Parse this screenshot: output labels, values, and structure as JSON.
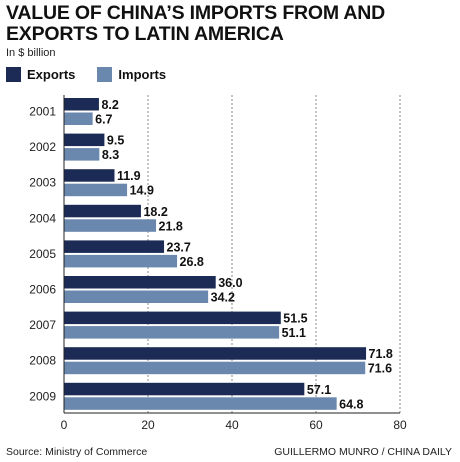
{
  "title": "VALUE OF CHINA’S IMPORTS FROM AND EXPORTS TO LATIN AMERICA",
  "unit": "In $ billion",
  "source": "Source: Ministry of Commerce",
  "credit": "GUILLERMO MUNRO / CHINA DAILY",
  "colors": {
    "exports": "#1b2b55",
    "imports": "#6a87ad",
    "grid": "#888888"
  },
  "chart_data": {
    "type": "bar",
    "orientation": "horizontal",
    "categories": [
      "2001",
      "2002",
      "2003",
      "2004",
      "2005",
      "2006",
      "2007",
      "2008",
      "2009"
    ],
    "series": [
      {
        "name": "Exports",
        "values": [
          8.2,
          9.5,
          11.9,
          18.2,
          23.7,
          36.0,
          51.5,
          71.8,
          57.1
        ],
        "labels": [
          "8.2",
          "9.5",
          "11.9",
          "18.2",
          "23.7",
          "36.0",
          "51.5",
          "71.8",
          "57.1"
        ]
      },
      {
        "name": "Imports",
        "values": [
          6.7,
          8.3,
          14.9,
          21.8,
          26.8,
          34.2,
          51.1,
          71.6,
          64.8
        ],
        "labels": [
          "6.7",
          "8.3",
          "14.9",
          "21.8",
          "26.8",
          "34.2",
          "51.1",
          "71.6",
          "64.8"
        ]
      }
    ],
    "xlim": [
      0,
      80
    ],
    "xticks": [
      "0",
      "20",
      "40",
      "60",
      "80"
    ],
    "xtick_values": [
      0,
      20,
      40,
      60,
      80
    ],
    "grid": true,
    "legend": "top-left"
  }
}
